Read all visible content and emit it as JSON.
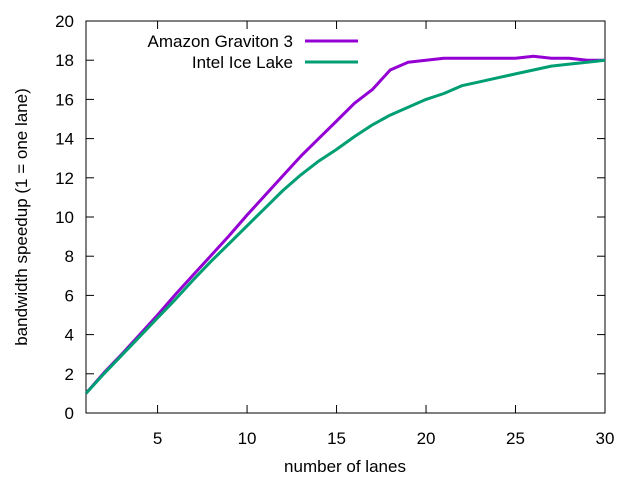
{
  "chart_data": {
    "type": "line",
    "title": "",
    "xlabel": "number of lanes",
    "ylabel": "bandwidth speedup (1 = one lane)",
    "xlim": [
      1,
      30
    ],
    "ylim": [
      0,
      20
    ],
    "xticks": [
      5,
      10,
      15,
      20,
      25,
      30
    ],
    "yticks": [
      0,
      2,
      4,
      6,
      8,
      10,
      12,
      14,
      16,
      18,
      20
    ],
    "grid": false,
    "legend_position": "top-right",
    "series": [
      {
        "name": "Amazon Graviton 3",
        "color": "#9400d3",
        "x": [
          1,
          2,
          3,
          4,
          5,
          6,
          7,
          8,
          9,
          10,
          11,
          12,
          13,
          14,
          15,
          16,
          17,
          18,
          19,
          20,
          21,
          22,
          23,
          24,
          25,
          26,
          27,
          28,
          29,
          30
        ],
        "y": [
          1,
          2.05,
          3.0,
          4.0,
          5.0,
          6.05,
          7.05,
          8.05,
          9.05,
          10.1,
          11.1,
          12.1,
          13.1,
          14.0,
          14.9,
          15.8,
          16.5,
          17.5,
          17.9,
          18.0,
          18.1,
          18.1,
          18.1,
          18.1,
          18.1,
          18.2,
          18.1,
          18.1,
          18.0,
          18.0
        ]
      },
      {
        "name": "Intel Ice Lake",
        "color": "#009e73",
        "x": [
          1,
          2,
          3,
          4,
          5,
          6,
          7,
          8,
          9,
          10,
          11,
          12,
          13,
          14,
          15,
          16,
          17,
          18,
          19,
          20,
          21,
          22,
          23,
          24,
          25,
          26,
          27,
          28,
          29,
          30
        ],
        "y": [
          1,
          2.0,
          2.95,
          3.9,
          4.85,
          5.8,
          6.8,
          7.75,
          8.65,
          9.55,
          10.45,
          11.35,
          12.15,
          12.85,
          13.45,
          14.1,
          14.7,
          15.2,
          15.6,
          16.0,
          16.3,
          16.7,
          16.9,
          17.1,
          17.3,
          17.5,
          17.7,
          17.8,
          17.9,
          18.0
        ]
      }
    ]
  }
}
